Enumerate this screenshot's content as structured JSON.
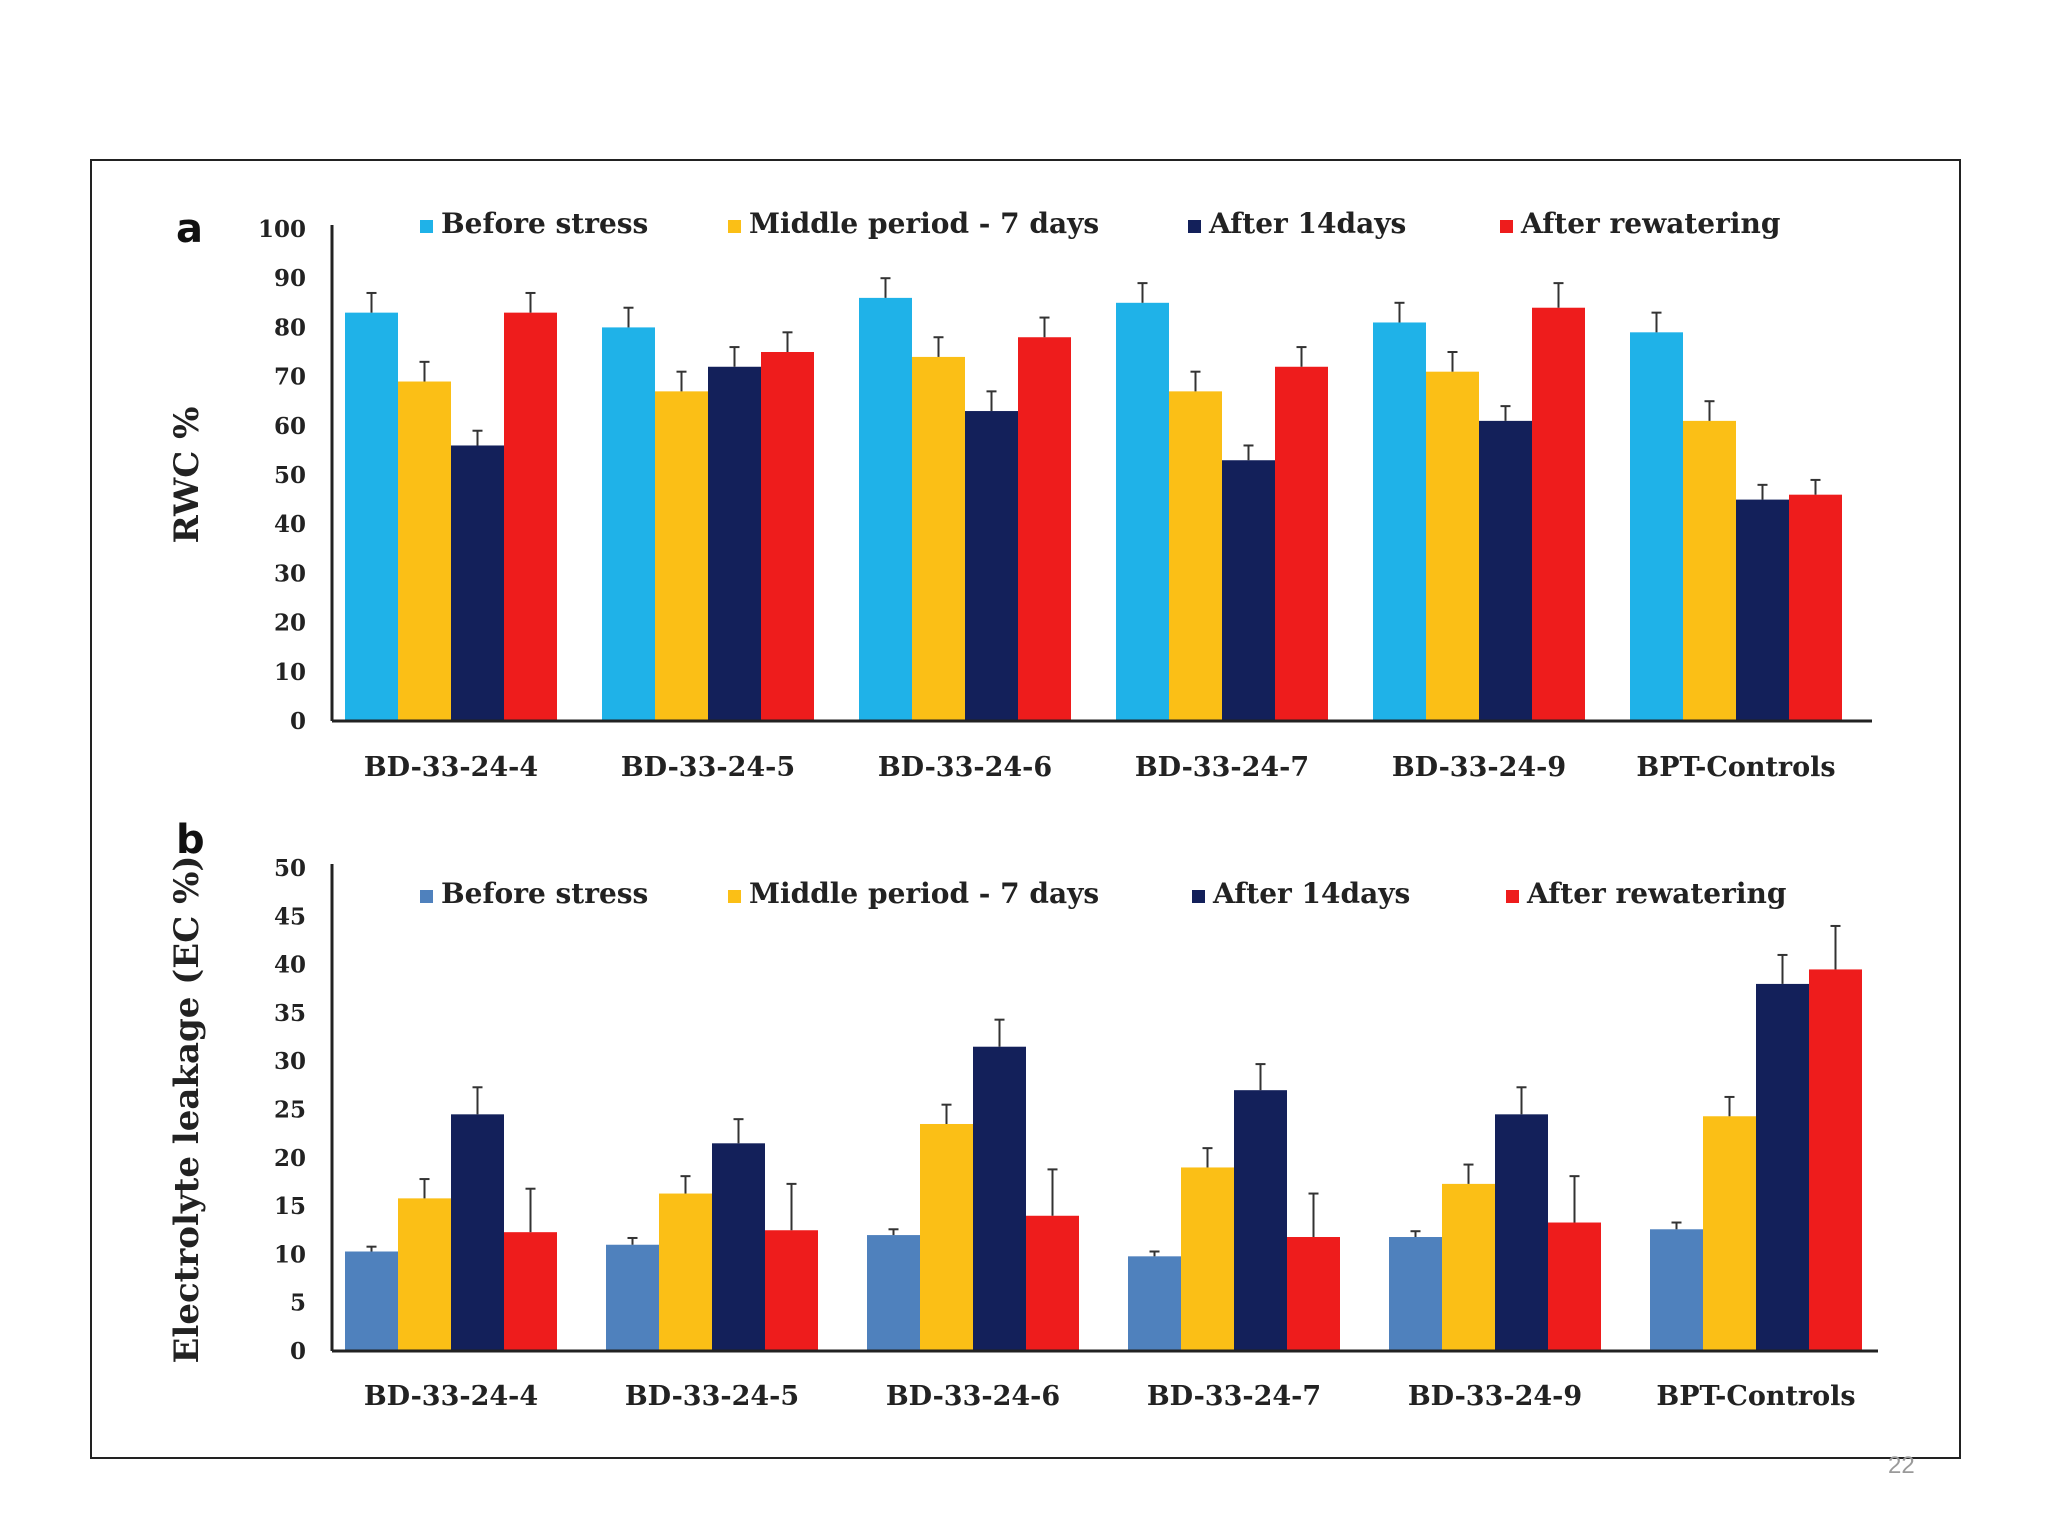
{
  "page_number": "22",
  "chart_data": [
    {
      "type": "bar",
      "panel": "a",
      "title": "",
      "xlabel": "",
      "ylabel": "RWC %",
      "ylim": [
        0,
        100
      ],
      "yticks": [
        0,
        10,
        20,
        30,
        40,
        50,
        60,
        70,
        80,
        90,
        100
      ],
      "categories": [
        "BD-33-24-4",
        "BD-33-24-5",
        "BD-33-24-6",
        "BD-33-24-7",
        "BD-33-24-9",
        "BPT-Controls"
      ],
      "legend_position": "top",
      "series": [
        {
          "name": "Before stress",
          "color": "#1fb2e8",
          "values": [
            83,
            80,
            86,
            85,
            81,
            79
          ],
          "errors": [
            4,
            4,
            4,
            4,
            4,
            4
          ]
        },
        {
          "name": "Middle period - 7 days",
          "color": "#fbbf16",
          "values": [
            69,
            67,
            74,
            67,
            71,
            61
          ],
          "errors": [
            4,
            4,
            4,
            4,
            4,
            4
          ]
        },
        {
          "name": "After 14days",
          "color": "#13205a",
          "values": [
            56,
            72,
            63,
            53,
            61,
            45
          ],
          "errors": [
            3,
            4,
            4,
            3,
            3,
            3
          ]
        },
        {
          "name": "After rewatering",
          "color": "#ee1c1c",
          "values": [
            83,
            75,
            78,
            72,
            84,
            46
          ],
          "errors": [
            4,
            4,
            4,
            4,
            5,
            3
          ]
        }
      ]
    },
    {
      "type": "bar",
      "panel": "b",
      "title": "",
      "xlabel": "",
      "ylabel": "Electrolyte leakage (EC %)",
      "ylim": [
        0,
        50
      ],
      "yticks": [
        0,
        5,
        10,
        15,
        20,
        25,
        30,
        35,
        40,
        45,
        50
      ],
      "categories": [
        "BD-33-24-4",
        "BD-33-24-5",
        "BD-33-24-6",
        "BD-33-24-7",
        "BD-33-24-9",
        "BPT-Controls"
      ],
      "legend_position": "top",
      "series": [
        {
          "name": "Before stress",
          "color": "#4f81bd",
          "values": [
            10.3,
            11,
            12,
            9.8,
            11.8,
            12.6
          ],
          "errors": [
            0.5,
            0.7,
            0.6,
            0.5,
            0.6,
            0.7
          ]
        },
        {
          "name": "Middle period - 7 days",
          "color": "#fbbf16",
          "values": [
            15.8,
            16.3,
            23.5,
            19,
            17.3,
            24.3
          ],
          "errors": [
            2,
            1.8,
            2,
            2,
            2,
            2
          ]
        },
        {
          "name": "After 14days",
          "color": "#13205a",
          "values": [
            24.5,
            21.5,
            31.5,
            27,
            24.5,
            38
          ],
          "errors": [
            2.8,
            2.5,
            2.8,
            2.7,
            2.8,
            3
          ]
        },
        {
          "name": "After rewatering",
          "color": "#ee1c1c",
          "values": [
            12.3,
            12.5,
            14,
            11.8,
            13.3,
            39.5
          ],
          "errors": [
            4.5,
            4.8,
            4.8,
            4.5,
            4.8,
            4.5
          ]
        }
      ]
    }
  ]
}
